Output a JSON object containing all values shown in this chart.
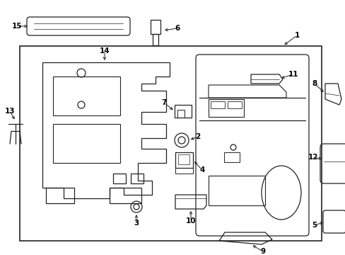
{
  "bg_color": "#ffffff",
  "line_color": "#222222",
  "text_color": "#000000",
  "figsize": [
    4.89,
    3.6
  ],
  "dpi": 100
}
